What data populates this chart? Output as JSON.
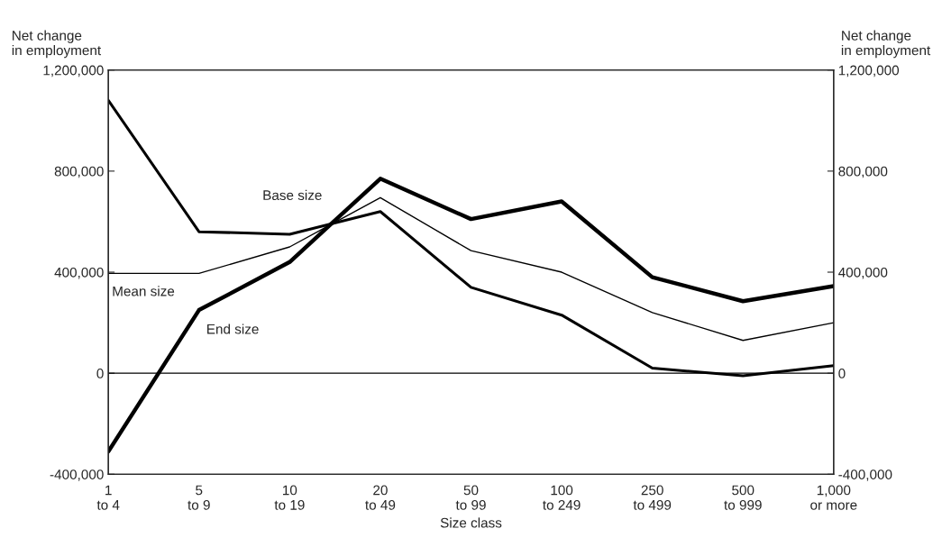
{
  "chart_data": {
    "type": "line",
    "xlabel": "Size class",
    "ylabel": "Net change\nin employment",
    "y2label": "Net change\nin employment",
    "categories": [
      "1\nto 4",
      "5\nto 9",
      "10\nto 19",
      "20\nto 49",
      "50\nto 99",
      "100\nto 249",
      "250\nto 499",
      "500\nto 999",
      "1,000\nor more"
    ],
    "series": [
      {
        "name": "Base size",
        "color": "#000000",
        "values": [
          1080000,
          560000,
          550000,
          640000,
          340000,
          230000,
          20000,
          -10000,
          30000
        ]
      },
      {
        "name": "Mean size",
        "color": "#000000",
        "values": [
          395000,
          395000,
          500000,
          695000,
          485000,
          400000,
          240000,
          130000,
          200000
        ]
      },
      {
        "name": "End size",
        "color": "#000000",
        "values": [
          -310000,
          250000,
          440000,
          770000,
          610000,
          680000,
          380000,
          285000,
          345000
        ]
      }
    ],
    "ylim": [
      -400000,
      1200000
    ],
    "yticks": [
      {
        "value": -400000,
        "label": "-400,000"
      },
      0,
      {
        "value": 400000,
        "label": "400,000"
      },
      {
        "value": 800000,
        "label": "800,000"
      },
      {
        "value": 1200000,
        "label": "1,200,000"
      }
    ],
    "y2lim": [
      -400000,
      1200000
    ],
    "y2ticks": [
      {
        "value": -400000,
        "label": "-400,000"
      },
      0,
      {
        "value": 400000,
        "label": "400,000"
      },
      {
        "value": 800000,
        "label": "800,000"
      },
      {
        "value": 1200000,
        "label": "1,200,000"
      }
    ],
    "ref_lines": [
      {
        "axis": "y",
        "value": 0,
        "color": "#000000"
      }
    ],
    "grid": false,
    "legend": false,
    "marker": "none",
    "line_style": "solid"
  }
}
